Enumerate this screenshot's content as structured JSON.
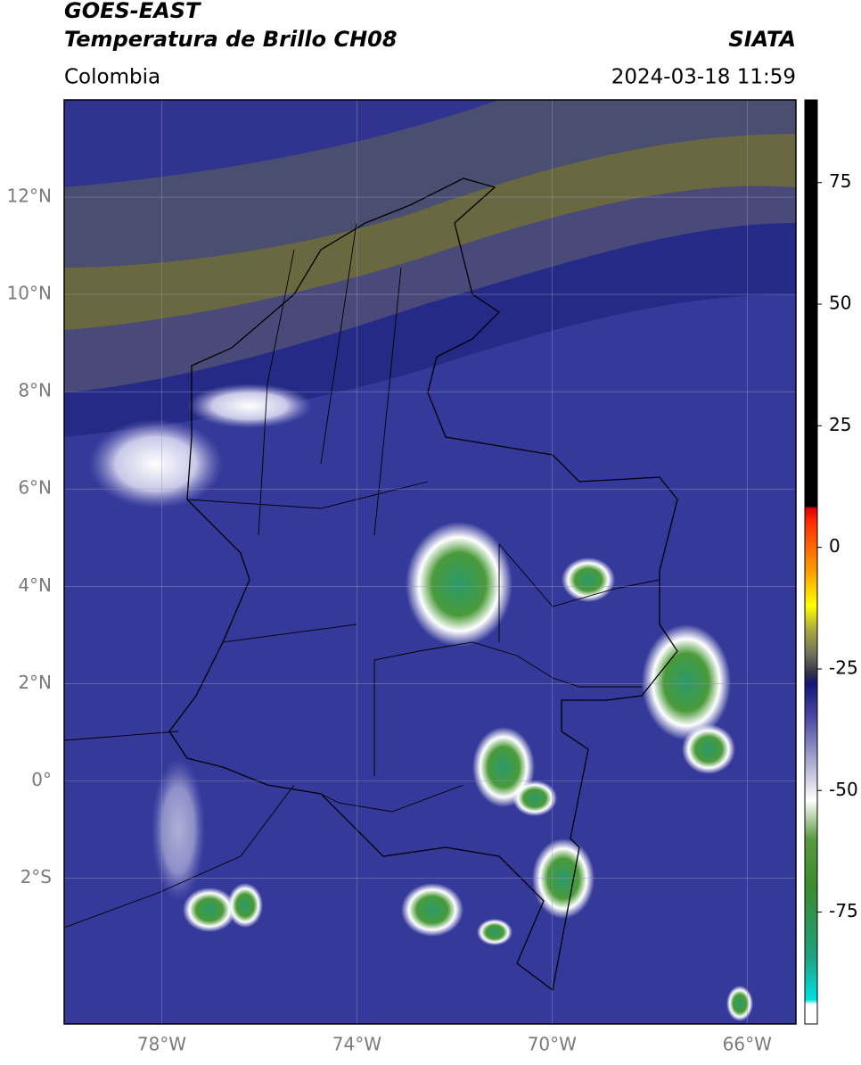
{
  "header": {
    "title": "GOES-EAST",
    "subtitle": "Temperatura de Brillo CH08",
    "source": "SIATA",
    "region": "Colombia",
    "datetime": "2024-03-18 11:59"
  },
  "map": {
    "xlim": [
      -80,
      -65
    ],
    "ylim": [
      -5,
      14
    ],
    "xticks": [
      {
        "value": -78,
        "label": "78°W"
      },
      {
        "value": -74,
        "label": "74°W"
      },
      {
        "value": -70,
        "label": "70°W"
      },
      {
        "value": -66,
        "label": "66°W"
      }
    ],
    "yticks": [
      {
        "value": 12,
        "label": "12°N"
      },
      {
        "value": 10,
        "label": "10°N"
      },
      {
        "value": 8,
        "label": "8°N"
      },
      {
        "value": 6,
        "label": "6°N"
      },
      {
        "value": 4,
        "label": "4°N"
      },
      {
        "value": 2,
        "label": "2°N"
      },
      {
        "value": 0,
        "label": "0°"
      },
      {
        "value": -2,
        "label": "2°S"
      }
    ],
    "grid": true
  },
  "colorbar": {
    "lim": [
      -98,
      92
    ],
    "ticks": [
      75,
      50,
      25,
      0,
      -25,
      -50,
      -75
    ],
    "stops": [
      {
        "value": -98,
        "color": "#ffffff"
      },
      {
        "value": -94,
        "color": "#ffffff"
      },
      {
        "value": -93,
        "color": "#00e0e0"
      },
      {
        "value": -84,
        "color": "#20a080"
      },
      {
        "value": -70,
        "color": "#3a8c2c"
      },
      {
        "value": -60,
        "color": "#5a9a40"
      },
      {
        "value": -52,
        "color": "#ffffff"
      },
      {
        "value": -45,
        "color": "#b4b4d4"
      },
      {
        "value": -35,
        "color": "#4a4aa4"
      },
      {
        "value": -28,
        "color": "#141478"
      },
      {
        "value": -26,
        "color": "#303048"
      },
      {
        "value": -22,
        "color": "#70705a"
      },
      {
        "value": -17,
        "color": "#a8a840"
      },
      {
        "value": -12,
        "color": "#ffff00"
      },
      {
        "value": -5,
        "color": "#ffa000"
      },
      {
        "value": 5,
        "color": "#ff3000"
      },
      {
        "value": 8,
        "color": "#e00000"
      },
      {
        "value": 8.5,
        "color": "#000000"
      },
      {
        "value": 92,
        "color": "#000000"
      }
    ]
  }
}
